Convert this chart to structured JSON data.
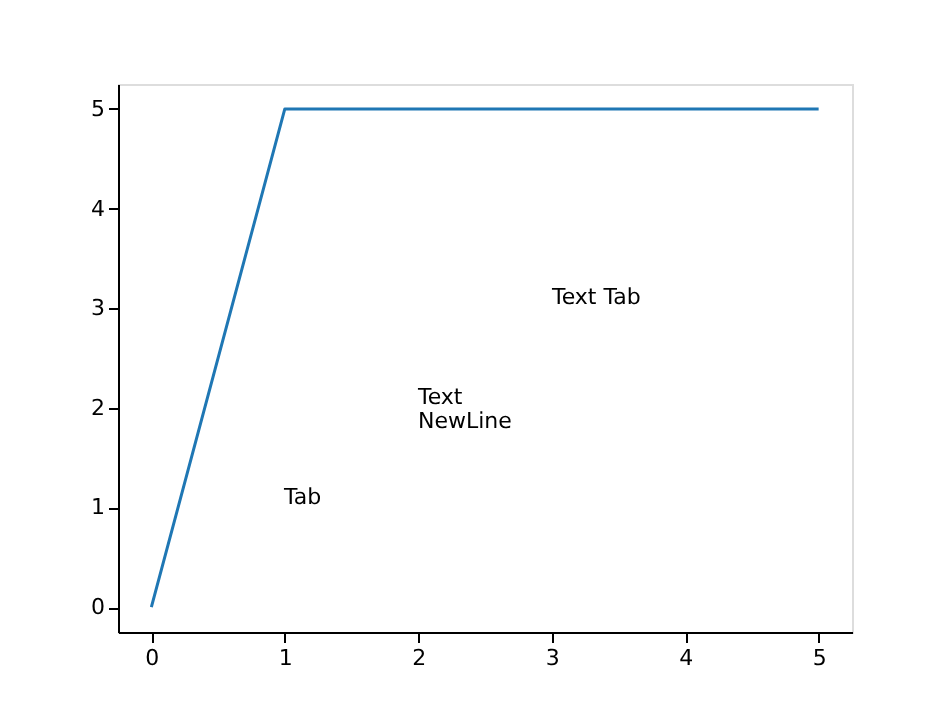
{
  "chart_data": {
    "type": "line",
    "x": [
      0,
      1,
      2,
      3,
      4,
      5
    ],
    "values": [
      0,
      5,
      5,
      5,
      5,
      5
    ],
    "color": "#1f77b4",
    "xlim": [
      -0.25,
      5.25
    ],
    "ylim": [
      -0.25,
      5.25
    ],
    "xticks": [
      0,
      1,
      2,
      3,
      4,
      5
    ],
    "yticks": [
      0,
      1,
      2,
      3,
      4,
      5
    ],
    "grid": false,
    "marker": "none",
    "line_style": "solid",
    "annotations": [
      "\tTab",
      "Text\nNewLine",
      "Text \tTab"
    ]
  }
}
